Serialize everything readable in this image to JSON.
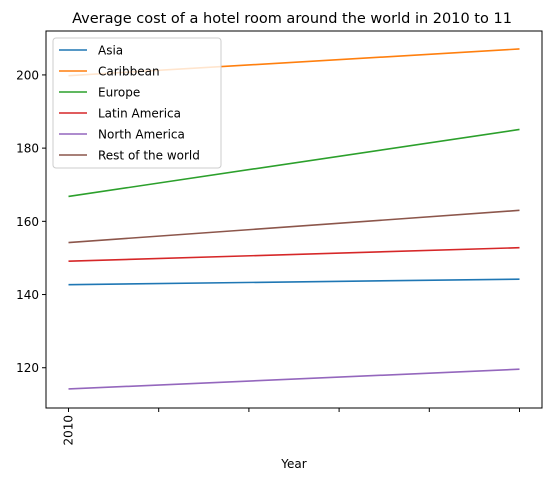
{
  "chart_data": {
    "type": "line",
    "title": "Average cost of a hotel room around the world in 2010 to 11",
    "xlabel": "Year",
    "ylabel": "",
    "x": [
      2010,
      2011
    ],
    "x_tick_labels": [
      "2010",
      "",
      "",
      "",
      "",
      ""
    ],
    "x_tick_count": 6,
    "ylim": [
      109,
      212
    ],
    "y_ticks": [
      120,
      140,
      160,
      180,
      200
    ],
    "grid": false,
    "legend_position": "top-left",
    "series": [
      {
        "name": "Asia",
        "color": "#1f77b4",
        "values": [
          142.7,
          144.2
        ]
      },
      {
        "name": "Caribbean",
        "color": "#ff7f0e",
        "values": [
          199.8,
          207.1
        ]
      },
      {
        "name": "Europe",
        "color": "#2ca02c",
        "values": [
          166.8,
          185.1
        ]
      },
      {
        "name": "Latin America",
        "color": "#d62728",
        "values": [
          149.1,
          152.8
        ]
      },
      {
        "name": "North America",
        "color": "#9467bd",
        "values": [
          114.2,
          119.6
        ]
      },
      {
        "name": "Rest of the world",
        "color": "#8c564b",
        "values": [
          154.2,
          163.0
        ]
      }
    ]
  }
}
